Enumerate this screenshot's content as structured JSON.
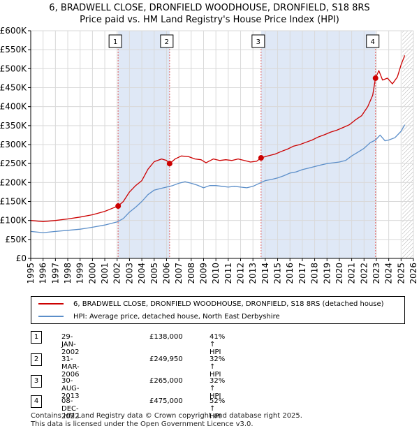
{
  "title_line1": "6, BRADWELL CLOSE, DRONFIELD WOODHOUSE, DRONFIELD, S18 8RS",
  "title_line2": "Price paid vs. HM Land Registry's House Price Index (HPI)",
  "colors": {
    "property": "#cc0000",
    "hpi": "#5b8ec9",
    "shade": "#dfe8f6",
    "vline": "#e06060",
    "grid": "#d9d9d9"
  },
  "chart_data": {
    "type": "line",
    "xlabel": "",
    "ylabel": "",
    "xlim": [
      1995,
      2026
    ],
    "ylim": [
      0,
      600000
    ],
    "x_ticks": [
      "1995",
      "1996",
      "1997",
      "1998",
      "1999",
      "2000",
      "2001",
      "2002",
      "2003",
      "2004",
      "2005",
      "2006",
      "2007",
      "2008",
      "2009",
      "2010",
      "2011",
      "2012",
      "2013",
      "2014",
      "2015",
      "2016",
      "2017",
      "2018",
      "2019",
      "2020",
      "2021",
      "2022",
      "2023",
      "2024",
      "2025",
      "2026"
    ],
    "y_ticks": [
      {
        "value": 0,
        "label": "£0"
      },
      {
        "value": 50000,
        "label": "£50K"
      },
      {
        "value": 100000,
        "label": "£100K"
      },
      {
        "value": 150000,
        "label": "£150K"
      },
      {
        "value": 200000,
        "label": "£200K"
      },
      {
        "value": 250000,
        "label": "£250K"
      },
      {
        "value": 300000,
        "label": "£300K"
      },
      {
        "value": 350000,
        "label": "£350K"
      },
      {
        "value": 400000,
        "label": "£400K"
      },
      {
        "value": 450000,
        "label": "£450K"
      },
      {
        "value": 500000,
        "label": "£500K"
      },
      {
        "value": 550000,
        "label": "£550K"
      },
      {
        "value": 600000,
        "label": "£600K"
      }
    ],
    "series": [
      {
        "name": "6, BRADWELL CLOSE, DRONFIELD WOODHOUSE, DRONFIELD, S18 8RS (detached house)",
        "color": "#cc0000",
        "points": [
          [
            1995.0,
            100000
          ],
          [
            1996.0,
            97000
          ],
          [
            1997.0,
            100000
          ],
          [
            1998.0,
            104000
          ],
          [
            1999.0,
            109000
          ],
          [
            2000.0,
            115000
          ],
          [
            2001.0,
            124000
          ],
          [
            2001.6,
            132000
          ],
          [
            2002.08,
            138000
          ],
          [
            2002.5,
            150000
          ],
          [
            2003.0,
            175000
          ],
          [
            2003.5,
            192000
          ],
          [
            2004.0,
            205000
          ],
          [
            2004.5,
            235000
          ],
          [
            2005.0,
            255000
          ],
          [
            2005.6,
            262000
          ],
          [
            2006.0,
            258000
          ],
          [
            2006.25,
            249950
          ],
          [
            2006.7,
            262000
          ],
          [
            2007.2,
            270000
          ],
          [
            2007.8,
            268000
          ],
          [
            2008.3,
            262000
          ],
          [
            2008.8,
            260000
          ],
          [
            2009.2,
            252000
          ],
          [
            2009.8,
            262000
          ],
          [
            2010.3,
            258000
          ],
          [
            2010.8,
            260000
          ],
          [
            2011.3,
            258000
          ],
          [
            2011.8,
            262000
          ],
          [
            2012.3,
            258000
          ],
          [
            2012.8,
            254000
          ],
          [
            2013.3,
            256000
          ],
          [
            2013.66,
            265000
          ],
          [
            2014.2,
            270000
          ],
          [
            2014.8,
            275000
          ],
          [
            2015.3,
            282000
          ],
          [
            2015.8,
            288000
          ],
          [
            2016.3,
            296000
          ],
          [
            2016.8,
            300000
          ],
          [
            2017.3,
            306000
          ],
          [
            2017.8,
            312000
          ],
          [
            2018.3,
            320000
          ],
          [
            2018.8,
            326000
          ],
          [
            2019.3,
            333000
          ],
          [
            2019.8,
            338000
          ],
          [
            2020.3,
            345000
          ],
          [
            2020.8,
            352000
          ],
          [
            2021.3,
            365000
          ],
          [
            2021.8,
            376000
          ],
          [
            2022.3,
            400000
          ],
          [
            2022.7,
            430000
          ],
          [
            2022.93,
            475000
          ],
          [
            2023.2,
            495000
          ],
          [
            2023.5,
            470000
          ],
          [
            2023.9,
            475000
          ],
          [
            2024.3,
            460000
          ],
          [
            2024.7,
            478000
          ],
          [
            2025.0,
            510000
          ],
          [
            2025.3,
            535000
          ]
        ]
      },
      {
        "name": "HPI: Average price, detached house, North East Derbyshire",
        "color": "#5b8ec9",
        "points": [
          [
            1995.0,
            71000
          ],
          [
            1996.0,
            68000
          ],
          [
            1997.0,
            71000
          ],
          [
            1998.0,
            74000
          ],
          [
            1999.0,
            77000
          ],
          [
            2000.0,
            82000
          ],
          [
            2001.0,
            88000
          ],
          [
            2002.0,
            96000
          ],
          [
            2002.5,
            105000
          ],
          [
            2003.0,
            122000
          ],
          [
            2003.5,
            135000
          ],
          [
            2004.0,
            150000
          ],
          [
            2004.5,
            168000
          ],
          [
            2005.0,
            180000
          ],
          [
            2005.5,
            184000
          ],
          [
            2006.0,
            188000
          ],
          [
            2006.5,
            192000
          ],
          [
            2007.0,
            198000
          ],
          [
            2007.5,
            202000
          ],
          [
            2008.0,
            198000
          ],
          [
            2008.5,
            193000
          ],
          [
            2009.0,
            186000
          ],
          [
            2009.5,
            192000
          ],
          [
            2010.0,
            192000
          ],
          [
            2010.5,
            190000
          ],
          [
            2011.0,
            188000
          ],
          [
            2011.5,
            190000
          ],
          [
            2012.0,
            188000
          ],
          [
            2012.5,
            186000
          ],
          [
            2013.0,
            190000
          ],
          [
            2013.66,
            200000
          ],
          [
            2014.0,
            205000
          ],
          [
            2014.5,
            208000
          ],
          [
            2015.0,
            212000
          ],
          [
            2015.5,
            218000
          ],
          [
            2016.0,
            225000
          ],
          [
            2016.5,
            228000
          ],
          [
            2017.0,
            234000
          ],
          [
            2017.5,
            238000
          ],
          [
            2018.0,
            242000
          ],
          [
            2018.5,
            246000
          ],
          [
            2019.0,
            250000
          ],
          [
            2019.5,
            252000
          ],
          [
            2020.0,
            254000
          ],
          [
            2020.5,
            258000
          ],
          [
            2021.0,
            270000
          ],
          [
            2021.5,
            280000
          ],
          [
            2022.0,
            290000
          ],
          [
            2022.5,
            305000
          ],
          [
            2022.93,
            312000
          ],
          [
            2023.3,
            325000
          ],
          [
            2023.7,
            310000
          ],
          [
            2024.0,
            312000
          ],
          [
            2024.5,
            318000
          ],
          [
            2025.0,
            335000
          ],
          [
            2025.3,
            352000
          ]
        ]
      }
    ],
    "transactions": [
      {
        "label": "1",
        "x": 2002.08,
        "price": 138000
      },
      {
        "label": "2",
        "x": 2006.25,
        "price": 249950
      },
      {
        "label": "3",
        "x": 2013.66,
        "price": 265000
      },
      {
        "label": "4",
        "x": 2022.93,
        "price": 475000
      }
    ],
    "shaded_spans": [
      [
        2002.08,
        2006.25
      ],
      [
        2013.66,
        2022.93
      ]
    ],
    "hatch_from": 2025.1
  },
  "legend": {
    "property_label": "6, BRADWELL CLOSE, DRONFIELD WOODHOUSE, DRONFIELD, S18 8RS (detached house)",
    "hpi_label": "HPI: Average price, detached house, North East Derbyshire"
  },
  "transactions_table": [
    {
      "num": "1",
      "date": "29-JAN-2002",
      "price": "£138,000",
      "hpi": "41% ↑ HPI"
    },
    {
      "num": "2",
      "date": "31-MAR-2006",
      "price": "£249,950",
      "hpi": "32% ↑ HPI"
    },
    {
      "num": "3",
      "date": "30-AUG-2013",
      "price": "£265,000",
      "hpi": "32% ↑ HPI"
    },
    {
      "num": "4",
      "date": "08-DEC-2022",
      "price": "£475,000",
      "hpi": "52% ↑ HPI"
    }
  ],
  "footer": {
    "line1": "Contains HM Land Registry data © Crown copyright and database right 2025.",
    "line2": "This data is licensed under the Open Government Licence v3.0."
  }
}
